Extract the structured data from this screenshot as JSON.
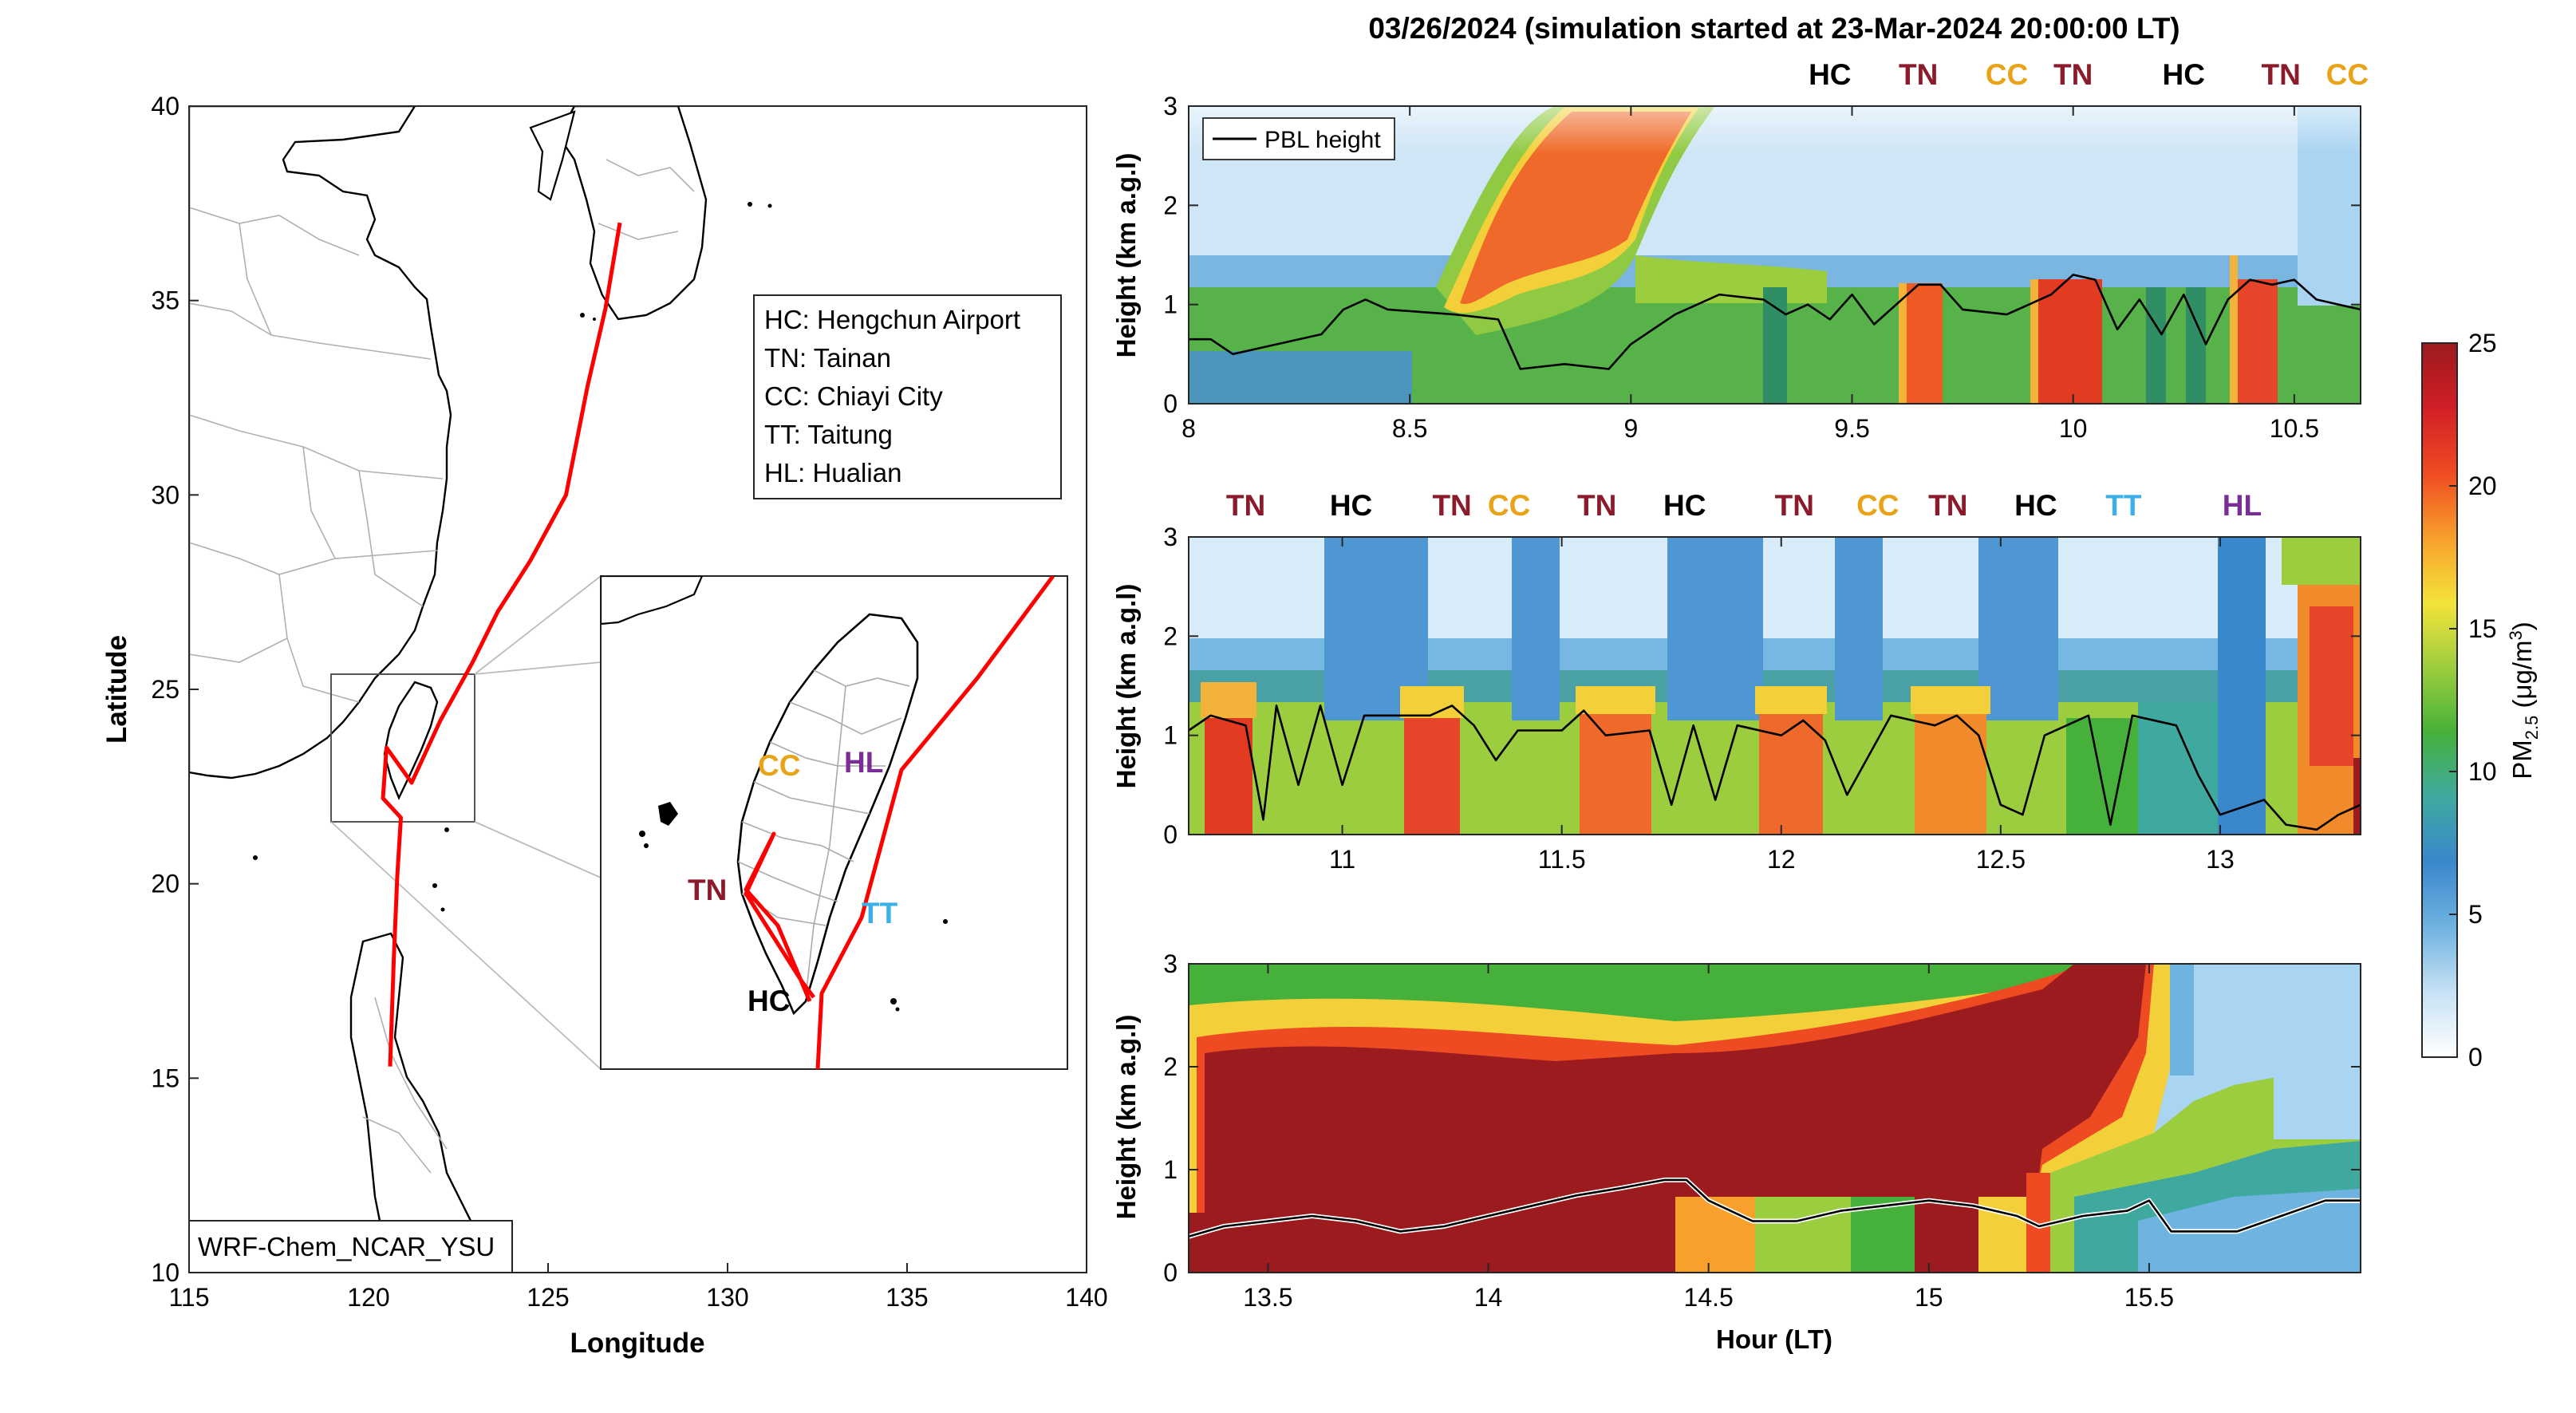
{
  "title": "03/26/2024 (simulation started at 23-Mar-2024 20:00:00 LT)",
  "colors": {
    "HC": "#000000",
    "TN": "#8b1a2b",
    "CC": "#e8a317",
    "TT": "#3bb0e8",
    "HL": "#7b2d96",
    "track": "#ff0000",
    "pbl": "#000000"
  },
  "map": {
    "xlabel": "Longitude",
    "ylabel": "Latitude",
    "xlim": [
      115,
      140
    ],
    "ylim": [
      10,
      40
    ],
    "xticks": [
      "115",
      "120",
      "125",
      "130",
      "135",
      "140"
    ],
    "yticks": [
      "10",
      "15",
      "20",
      "25",
      "30",
      "35",
      "40"
    ],
    "legend": [
      "HC: Hengchun Airport",
      "TN: Tainan",
      "CC: Chiayi City",
      "TT: Taitung",
      "HL: Hualian"
    ],
    "model_label": "WRF-Chem_NCAR_YSU",
    "track": [
      [
        127.0,
        37.0
      ],
      [
        126.6,
        34.8
      ],
      [
        126.1,
        32.8
      ],
      [
        125.5,
        30.0
      ],
      [
        124.5,
        28.3
      ],
      [
        123.6,
        27.0
      ],
      [
        122.9,
        25.7
      ],
      [
        122.0,
        24.2
      ],
      [
        121.2,
        22.6
      ],
      [
        120.5,
        23.5
      ],
      [
        120.4,
        22.2
      ],
      [
        120.9,
        21.7
      ],
      [
        120.8,
        20.2
      ],
      [
        120.7,
        18.0
      ],
      [
        120.6,
        15.3
      ]
    ],
    "inset_labels": [
      {
        "code": "CC",
        "text": "CC"
      },
      {
        "code": "HL",
        "text": "HL"
      },
      {
        "code": "TN",
        "text": "TN"
      },
      {
        "code": "TT",
        "text": "TT"
      },
      {
        "code": "HC",
        "text": "HC"
      }
    ]
  },
  "chart_data": [
    {
      "type": "heatmap",
      "ylabel": "Height (km a.g.l)",
      "xlim": [
        8,
        10.65
      ],
      "ylim": [
        0,
        3
      ],
      "xticks": [
        "8",
        "8.5",
        "9",
        "9.5",
        "10",
        "10.5"
      ],
      "yticks": [
        "0",
        "1",
        "2",
        "3"
      ],
      "legend": "PBL height",
      "site_labels": [
        {
          "x": 9.45,
          "code": "HC"
        },
        {
          "x": 9.65,
          "code": "TN"
        },
        {
          "x": 9.85,
          "code": "CC"
        },
        {
          "x": 10.0,
          "code": "TN"
        },
        {
          "x": 10.25,
          "code": "HC"
        },
        {
          "x": 10.47,
          "code": "TN"
        },
        {
          "x": 10.62,
          "code": "CC"
        }
      ],
      "pbl": [
        [
          8.0,
          0.65
        ],
        [
          8.05,
          0.65
        ],
        [
          8.1,
          0.5
        ],
        [
          8.2,
          0.6
        ],
        [
          8.3,
          0.7
        ],
        [
          8.35,
          0.95
        ],
        [
          8.4,
          1.05
        ],
        [
          8.45,
          0.95
        ],
        [
          8.6,
          0.9
        ],
        [
          8.7,
          0.85
        ],
        [
          8.75,
          0.35
        ],
        [
          8.85,
          0.4
        ],
        [
          8.95,
          0.35
        ],
        [
          9.0,
          0.6
        ],
        [
          9.1,
          0.9
        ],
        [
          9.2,
          1.1
        ],
        [
          9.3,
          1.05
        ],
        [
          9.35,
          0.9
        ],
        [
          9.4,
          1.0
        ],
        [
          9.45,
          0.85
        ],
        [
          9.5,
          1.1
        ],
        [
          9.55,
          0.8
        ],
        [
          9.6,
          1.0
        ],
        [
          9.65,
          1.2
        ],
        [
          9.7,
          1.2
        ],
        [
          9.75,
          0.95
        ],
        [
          9.85,
          0.9
        ],
        [
          9.9,
          1.0
        ],
        [
          9.95,
          1.1
        ],
        [
          10.0,
          1.3
        ],
        [
          10.05,
          1.25
        ],
        [
          10.1,
          0.75
        ],
        [
          10.15,
          1.05
        ],
        [
          10.2,
          0.7
        ],
        [
          10.25,
          1.1
        ],
        [
          10.3,
          0.6
        ],
        [
          10.35,
          1.05
        ],
        [
          10.4,
          1.25
        ],
        [
          10.45,
          1.2
        ],
        [
          10.5,
          1.25
        ],
        [
          10.55,
          1.05
        ],
        [
          10.6,
          1.0
        ],
        [
          10.65,
          0.95
        ]
      ]
    },
    {
      "type": "heatmap",
      "ylabel": "Height (km a.g.l)",
      "xlim": [
        10.65,
        13.32
      ],
      "ylim": [
        0,
        3
      ],
      "xticks": [
        "11",
        "11.5",
        "12",
        "12.5",
        "13"
      ],
      "yticks": [
        "0",
        "1",
        "2",
        "3"
      ],
      "site_labels": [
        {
          "x": 10.78,
          "code": "TN"
        },
        {
          "x": 11.02,
          "code": "HC"
        },
        {
          "x": 11.25,
          "code": "TN"
        },
        {
          "x": 11.38,
          "code": "CC"
        },
        {
          "x": 11.58,
          "code": "TN"
        },
        {
          "x": 11.78,
          "code": "HC"
        },
        {
          "x": 12.03,
          "code": "TN"
        },
        {
          "x": 12.22,
          "code": "CC"
        },
        {
          "x": 12.38,
          "code": "TN"
        },
        {
          "x": 12.58,
          "code": "HC"
        },
        {
          "x": 12.78,
          "code": "TT"
        },
        {
          "x": 13.05,
          "code": "HL"
        }
      ],
      "pbl": [
        [
          10.65,
          1.05
        ],
        [
          10.7,
          1.2
        ],
        [
          10.78,
          1.1
        ],
        [
          10.82,
          0.15
        ],
        [
          10.85,
          1.3
        ],
        [
          10.9,
          0.5
        ],
        [
          10.95,
          1.3
        ],
        [
          11.0,
          0.5
        ],
        [
          11.05,
          1.2
        ],
        [
          11.15,
          1.2
        ],
        [
          11.2,
          1.2
        ],
        [
          11.25,
          1.3
        ],
        [
          11.3,
          1.1
        ],
        [
          11.35,
          0.75
        ],
        [
          11.4,
          1.05
        ],
        [
          11.5,
          1.05
        ],
        [
          11.55,
          1.25
        ],
        [
          11.6,
          1.0
        ],
        [
          11.7,
          1.05
        ],
        [
          11.75,
          0.3
        ],
        [
          11.8,
          1.1
        ],
        [
          11.85,
          0.35
        ],
        [
          11.9,
          1.1
        ],
        [
          12.0,
          1.0
        ],
        [
          12.05,
          1.15
        ],
        [
          12.1,
          0.95
        ],
        [
          12.15,
          0.4
        ],
        [
          12.25,
          1.2
        ],
        [
          12.35,
          1.1
        ],
        [
          12.4,
          1.2
        ],
        [
          12.45,
          1.0
        ],
        [
          12.5,
          0.3
        ],
        [
          12.55,
          0.2
        ],
        [
          12.6,
          1.0
        ],
        [
          12.7,
          1.2
        ],
        [
          12.75,
          0.1
        ],
        [
          12.8,
          1.2
        ],
        [
          12.9,
          1.1
        ],
        [
          12.95,
          0.6
        ],
        [
          13.0,
          0.2
        ],
        [
          13.1,
          0.35
        ],
        [
          13.15,
          0.1
        ],
        [
          13.22,
          0.05
        ],
        [
          13.27,
          0.2
        ],
        [
          13.32,
          0.3
        ]
      ]
    },
    {
      "type": "heatmap",
      "xlabel": "Hour (LT)",
      "ylabel": "Height (km a.g.l)",
      "xlim": [
        13.32,
        15.98
      ],
      "ylim": [
        0,
        3
      ],
      "xticks": [
        "13.5",
        "14",
        "14.5",
        "15",
        "15.5"
      ],
      "yticks": [
        "0",
        "1",
        "2",
        "3"
      ],
      "pbl": [
        [
          13.32,
          0.35
        ],
        [
          13.4,
          0.45
        ],
        [
          13.5,
          0.5
        ],
        [
          13.6,
          0.55
        ],
        [
          13.7,
          0.5
        ],
        [
          13.8,
          0.4
        ],
        [
          13.9,
          0.45
        ],
        [
          14.0,
          0.55
        ],
        [
          14.1,
          0.65
        ],
        [
          14.2,
          0.75
        ],
        [
          14.3,
          0.82
        ],
        [
          14.4,
          0.9
        ],
        [
          14.45,
          0.9
        ],
        [
          14.5,
          0.7
        ],
        [
          14.6,
          0.5
        ],
        [
          14.7,
          0.5
        ],
        [
          14.8,
          0.6
        ],
        [
          14.9,
          0.65
        ],
        [
          15.0,
          0.7
        ],
        [
          15.1,
          0.65
        ],
        [
          15.2,
          0.55
        ],
        [
          15.25,
          0.45
        ],
        [
          15.35,
          0.55
        ],
        [
          15.45,
          0.6
        ],
        [
          15.5,
          0.7
        ],
        [
          15.55,
          0.4
        ],
        [
          15.6,
          0.4
        ],
        [
          15.7,
          0.4
        ],
        [
          15.8,
          0.55
        ],
        [
          15.9,
          0.7
        ],
        [
          15.98,
          0.7
        ]
      ]
    }
  ],
  "colorbar": {
    "label": "PM",
    "subscript": "2.5",
    "units": " (μg/m",
    "sup": "3",
    "close": ")",
    "ticks": [
      "0",
      "5",
      "10",
      "15",
      "20",
      "25"
    ],
    "range": [
      0,
      25
    ],
    "stops": [
      "#ffffff",
      "#c6e2f5",
      "#6fb3e0",
      "#3a87cc",
      "#3fa9a0",
      "#46b13a",
      "#9ccd3f",
      "#f3e33a",
      "#f7a02c",
      "#ef4b22",
      "#d21f26",
      "#9b1b1e"
    ]
  }
}
